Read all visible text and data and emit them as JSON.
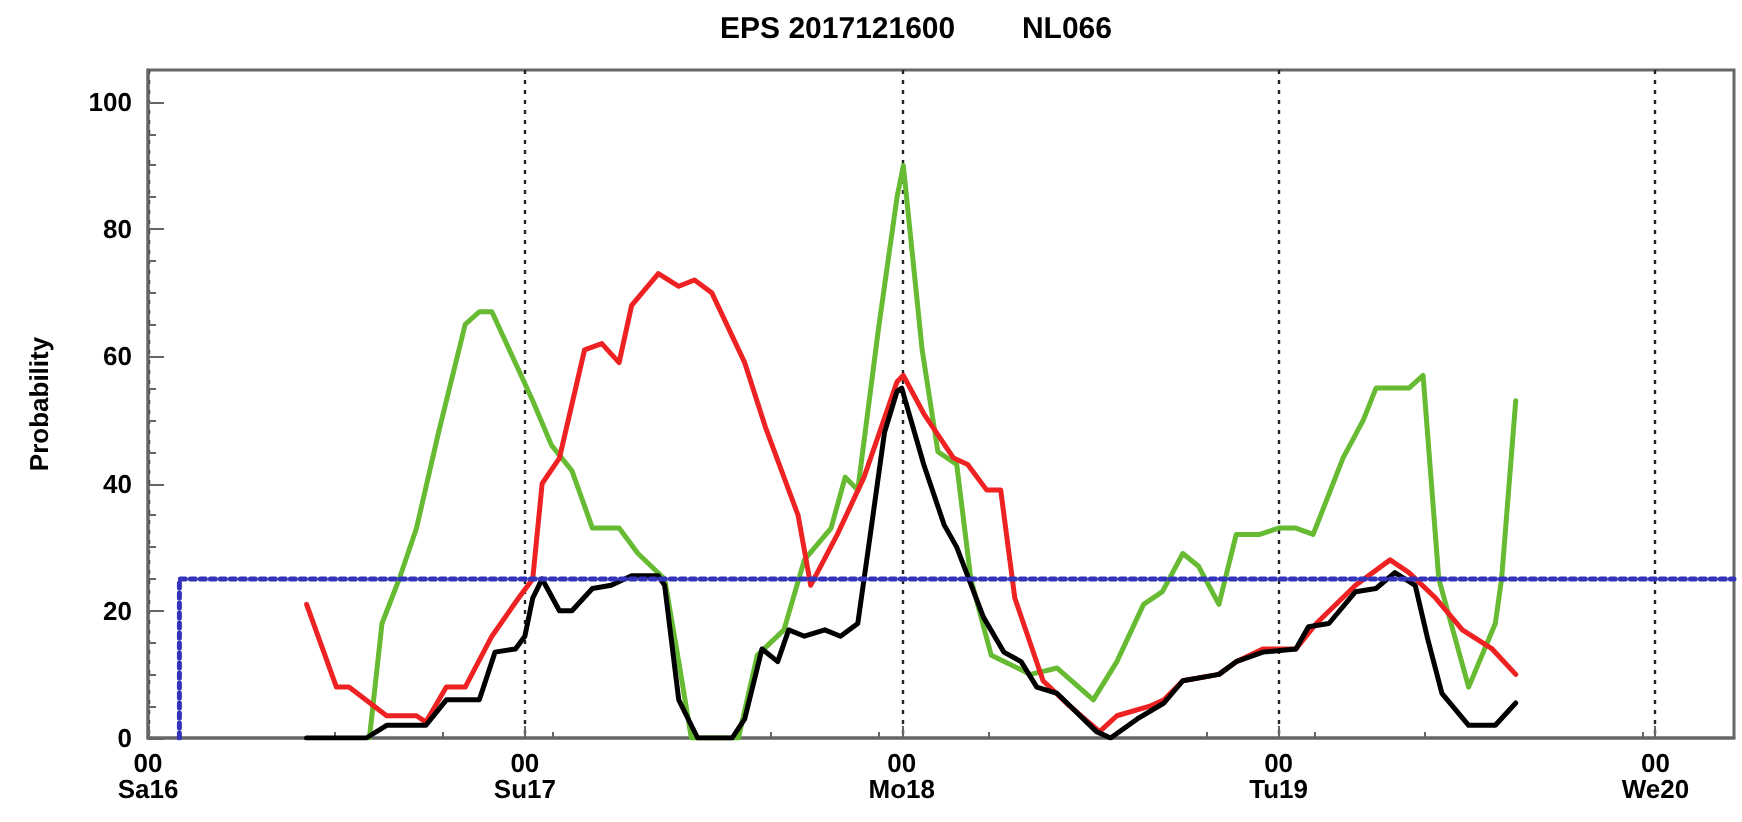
{
  "chart_data": {
    "type": "line",
    "title": "EPS 2017121600        NL066",
    "ylabel": "Probability",
    "xlim": [
      "2017-12-16T00:00",
      "2017-12-20T05:00"
    ],
    "ylim": [
      0,
      105
    ],
    "xticks": [
      {
        "value": "2017-12-16T00:00",
        "label": "00\nSa16"
      },
      {
        "value": "2017-12-17T00:00",
        "label": "00\nSu17"
      },
      {
        "value": "2017-12-18T00:00",
        "label": "00\nMo18"
      },
      {
        "value": "2017-12-19T00:00",
        "label": "00\nTu19"
      },
      {
        "value": "2017-12-20T00:00",
        "label": "00\nWe20"
      }
    ],
    "yticks": [
      0,
      20,
      40,
      60,
      80,
      100
    ],
    "grid": "x",
    "marker": "none",
    "series": [
      {
        "color": "#66bb33",
        "x": [
          "2017-12-16T14:06",
          "2017-12-16T14:54",
          "2017-12-16T16:00",
          "2017-12-16T17:06",
          "2017-12-16T18:30",
          "2017-12-16T20:12",
          "2017-12-16T21:06",
          "2017-12-16T21:54",
          "2017-12-16T23:12",
          "2017-12-17T00:30",
          "2017-12-17T01:42",
          "2017-12-17T03:00",
          "2017-12-17T04:18",
          "2017-12-17T06:00",
          "2017-12-17T07:12",
          "2017-12-17T08:54",
          "2017-12-17T09:48",
          "2017-12-17T10:36",
          "2017-12-17T13:36",
          "2017-12-17T14:48",
          "2017-12-17T16:30",
          "2017-12-17T17:48",
          "2017-12-17T19:30",
          "2017-12-17T20:24",
          "2017-12-17T21:12",
          "2017-12-17T22:30",
          "2017-12-17T23:42",
          "2017-12-18T00:06",
          "2017-12-18T01:18",
          "2017-12-18T02:18",
          "2017-12-18T03:30",
          "2017-12-18T04:24",
          "2017-12-18T05:42",
          "2017-12-18T08:12",
          "2017-12-18T09:54",
          "2017-12-18T12:12",
          "2017-12-18T13:42",
          "2017-12-18T15:24",
          "2017-12-18T16:36",
          "2017-12-18T17:54",
          "2017-12-18T18:54",
          "2017-12-18T20:12",
          "2017-12-18T21:18",
          "2017-12-18T22:48",
          "2017-12-19T00:00",
          "2017-12-19T01:06",
          "2017-12-19T02:12",
          "2017-12-19T04:06",
          "2017-12-19T05:24",
          "2017-12-19T06:12",
          "2017-12-19T08:18",
          "2017-12-19T09:12",
          "2017-12-19T10:12",
          "2017-12-19T12:06",
          "2017-12-19T13:48",
          "2017-12-19T14:12",
          "2017-12-19T15:06"
        ],
        "values": [
          0,
          18,
          25,
          33,
          48,
          65,
          67,
          67,
          60,
          53,
          46,
          42,
          33,
          33,
          29,
          25,
          12,
          0,
          0,
          13,
          17,
          28,
          33,
          41,
          39,
          64,
          85,
          90,
          61,
          45,
          43,
          25,
          13,
          10,
          11,
          6,
          12,
          21,
          23,
          29,
          27,
          21,
          32,
          32,
          33,
          33,
          32,
          44,
          50,
          55,
          55,
          57,
          25,
          8,
          18,
          25,
          53
        ]
      },
      {
        "color": "#ee2222",
        "x": [
          "2017-12-16T10:06",
          "2017-12-16T12:00",
          "2017-12-16T12:48",
          "2017-12-16T15:12",
          "2017-12-16T17:06",
          "2017-12-16T17:42",
          "2017-12-16T19:00",
          "2017-12-16T20:12",
          "2017-12-16T21:54",
          "2017-12-16T23:36",
          "2017-12-17T00:30",
          "2017-12-17T01:06",
          "2017-12-17T02:12",
          "2017-12-17T03:48",
          "2017-12-17T04:54",
          "2017-12-17T06:00",
          "2017-12-17T06:48",
          "2017-12-17T08:30",
          "2017-12-17T09:48",
          "2017-12-17T10:48",
          "2017-12-17T11:54",
          "2017-12-17T14:00",
          "2017-12-17T15:18",
          "2017-12-17T17:24",
          "2017-12-17T18:12",
          "2017-12-17T19:54",
          "2017-12-17T21:36",
          "2017-12-17T23:42",
          "2017-12-18T00:06",
          "2017-12-18T01:24",
          "2017-12-18T03:18",
          "2017-12-18T04:12",
          "2017-12-18T05:24",
          "2017-12-18T06:18",
          "2017-12-18T07:12",
          "2017-12-18T09:00",
          "2017-12-18T10:42",
          "2017-12-18T12:36",
          "2017-12-18T13:42",
          "2017-12-18T15:48",
          "2017-12-18T16:42",
          "2017-12-18T17:54",
          "2017-12-18T20:12",
          "2017-12-18T21:18",
          "2017-12-18T23:00",
          "2017-12-19T01:06",
          "2017-12-19T02:24",
          "2017-12-19T04:54",
          "2017-12-19T07:06",
          "2017-12-19T08:18",
          "2017-12-19T10:00",
          "2017-12-19T11:42",
          "2017-12-19T13:36",
          "2017-12-19T15:06"
        ],
        "values": [
          21,
          8,
          8,
          3.5,
          3.5,
          2.5,
          8,
          8,
          16,
          22,
          25,
          40,
          44,
          61,
          62,
          59,
          68,
          73,
          71,
          72,
          70,
          59,
          49,
          35,
          24,
          32,
          41,
          56,
          57,
          51,
          44,
          43,
          39,
          39,
          22,
          9,
          5,
          1,
          3.5,
          5,
          6,
          9,
          10,
          12,
          14,
          14,
          18,
          24,
          28,
          26,
          22,
          17,
          14,
          10
        ]
      },
      {
        "color": "#000000",
        "x": [
          "2017-12-16T10:06",
          "2017-12-16T13:54",
          "2017-12-16T15:12",
          "2017-12-16T17:42",
          "2017-12-16T19:00",
          "2017-12-16T21:06",
          "2017-12-16T22:06",
          "2017-12-16T23:24",
          "2017-12-17T00:00",
          "2017-12-17T00:30",
          "2017-12-17T01:06",
          "2017-12-17T02:12",
          "2017-12-17T03:00",
          "2017-12-17T04:18",
          "2017-12-17T05:30",
          "2017-12-17T06:48",
          "2017-12-17T08:30",
          "2017-12-17T08:54",
          "2017-12-17T09:48",
          "2017-12-17T11:00",
          "2017-12-17T13:12",
          "2017-12-17T14:00",
          "2017-12-17T15:06",
          "2017-12-17T16:06",
          "2017-12-17T16:48",
          "2017-12-17T17:48",
          "2017-12-17T19:06",
          "2017-12-17T20:06",
          "2017-12-17T21:12",
          "2017-12-17T22:00",
          "2017-12-17T22:54",
          "2017-12-17T23:42",
          "2017-12-18T00:00",
          "2017-12-18T01:24",
          "2017-12-18T02:42",
          "2017-12-18T03:30",
          "2017-12-18T05:12",
          "2017-12-18T06:30",
          "2017-12-18T07:36",
          "2017-12-18T08:36",
          "2017-12-18T09:54",
          "2017-12-18T12:24",
          "2017-12-18T13:18",
          "2017-12-18T15:00",
          "2017-12-18T16:42",
          "2017-12-18T17:54",
          "2017-12-18T20:12",
          "2017-12-18T21:18",
          "2017-12-18T23:00",
          "2017-12-19T01:06",
          "2017-12-19T01:54",
          "2017-12-19T03:12",
          "2017-12-19T04:54",
          "2017-12-19T06:12",
          "2017-12-19T07:24",
          "2017-12-19T08:42",
          "2017-12-19T09:30",
          "2017-12-19T10:24",
          "2017-12-19T12:06",
          "2017-12-19T13:48",
          "2017-12-19T15:06"
        ],
        "values": [
          0,
          0,
          2,
          2,
          6,
          6,
          13.5,
          14,
          16,
          22,
          25,
          20,
          20,
          23.5,
          24,
          25.5,
          25.5,
          24,
          6,
          0,
          0,
          3,
          14,
          12,
          17,
          16,
          17,
          16,
          18,
          32,
          48,
          54.5,
          55,
          43,
          33.5,
          30,
          19,
          13.5,
          12,
          8,
          7,
          1,
          0,
          3,
          5.5,
          9,
          10,
          12,
          13.5,
          14,
          17.5,
          18,
          23,
          23.5,
          26,
          24,
          15.5,
          7,
          2,
          2,
          5.5
        ]
      },
      {
        "color": "#3333bb",
        "line_style": "dotted",
        "x": [
          "2017-12-16T02:00",
          "2017-12-16T02:00",
          "2017-12-20T05:00"
        ],
        "values": [
          0,
          25,
          25
        ]
      }
    ]
  }
}
